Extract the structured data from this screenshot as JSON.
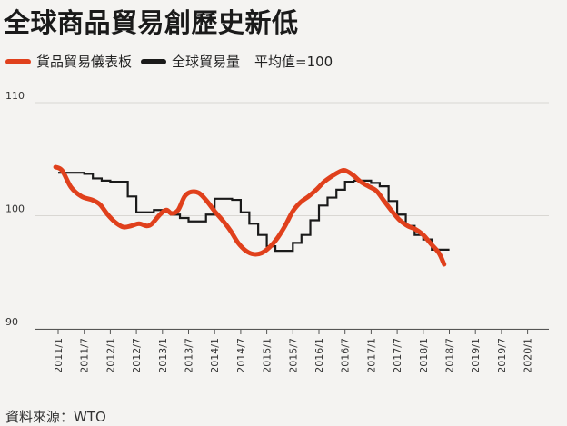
{
  "title": "全球商品貿易創歷史新低",
  "legend": {
    "items": [
      {
        "label": "貨品貿易儀表板",
        "color": "#e0401c"
      },
      {
        "label": "全球貿易量",
        "color": "#1a1a1a"
      }
    ],
    "note": "平均值=100"
  },
  "source": "資料來源：WTO",
  "colors": {
    "background": "#f4f3f1",
    "gridline": "#d9d7d3",
    "axis": "#555555",
    "barometer": "#e0401c",
    "volume": "#1a1a1a"
  },
  "chart_data": {
    "type": "line",
    "title": "全球商品貿易創歷史新低",
    "xlabel": "",
    "ylabel": "",
    "ylim": [
      90,
      110
    ],
    "yticks": [
      90,
      100,
      110
    ],
    "xticks": [
      "2011/1",
      "2011/7",
      "2012/1",
      "2012/7",
      "2013/1",
      "2013/7",
      "2014/1",
      "2014/7",
      "2015/1",
      "2015/7",
      "2016/1",
      "2016/7",
      "2017/1",
      "2017/7",
      "2018/1",
      "2018/7",
      "2019/1",
      "2019/7",
      "2020/1"
    ],
    "grid": true,
    "legend_position": "top-left",
    "series": [
      {
        "name": "貨品貿易儀表板",
        "style": "smooth",
        "points": [
          [
            -0.1,
            104.3
          ],
          [
            0.15,
            104.0
          ],
          [
            0.5,
            102.5
          ],
          [
            0.9,
            101.7
          ],
          [
            1.3,
            101.4
          ],
          [
            1.6,
            101.0
          ],
          [
            1.9,
            100.1
          ],
          [
            2.2,
            99.4
          ],
          [
            2.5,
            99.0
          ],
          [
            2.8,
            99.1
          ],
          [
            3.1,
            99.3
          ],
          [
            3.4,
            99.1
          ],
          [
            3.6,
            99.3
          ],
          [
            3.9,
            100.1
          ],
          [
            4.15,
            100.5
          ],
          [
            4.35,
            100.2
          ],
          [
            4.6,
            100.5
          ],
          [
            4.85,
            101.7
          ],
          [
            5.1,
            102.1
          ],
          [
            5.4,
            102.0
          ],
          [
            5.7,
            101.3
          ],
          [
            6.0,
            100.4
          ],
          [
            6.3,
            99.6
          ],
          [
            6.6,
            98.7
          ],
          [
            6.9,
            97.6
          ],
          [
            7.2,
            96.9
          ],
          [
            7.5,
            96.6
          ],
          [
            7.8,
            96.7
          ],
          [
            8.1,
            97.2
          ],
          [
            8.4,
            98.0
          ],
          [
            8.7,
            99.1
          ],
          [
            9.0,
            100.4
          ],
          [
            9.3,
            101.2
          ],
          [
            9.6,
            101.7
          ],
          [
            9.9,
            102.3
          ],
          [
            10.2,
            103.0
          ],
          [
            10.5,
            103.5
          ],
          [
            10.8,
            103.9
          ],
          [
            11.0,
            104.0
          ],
          [
            11.3,
            103.6
          ],
          [
            11.6,
            103.0
          ],
          [
            11.9,
            102.6
          ],
          [
            12.2,
            102.2
          ],
          [
            12.5,
            101.3
          ],
          [
            12.8,
            100.4
          ],
          [
            13.1,
            99.6
          ],
          [
            13.4,
            99.1
          ],
          [
            13.7,
            98.8
          ],
          [
            14.0,
            98.3
          ],
          [
            14.3,
            97.5
          ],
          [
            14.6,
            96.7
          ],
          [
            14.8,
            95.7
          ]
        ]
      },
      {
        "name": "全球貿易量",
        "style": "step",
        "points": [
          [
            0.0,
            103.8
          ],
          [
            0.33,
            103.8
          ],
          [
            0.67,
            103.8
          ],
          [
            1.0,
            103.7
          ],
          [
            1.33,
            103.3
          ],
          [
            1.67,
            103.1
          ],
          [
            2.0,
            103.0
          ],
          [
            2.33,
            103.0
          ],
          [
            2.67,
            101.7
          ],
          [
            3.0,
            100.3
          ],
          [
            3.33,
            100.3
          ],
          [
            3.67,
            100.5
          ],
          [
            4.0,
            100.3
          ],
          [
            4.33,
            100.1
          ],
          [
            4.67,
            99.8
          ],
          [
            5.0,
            99.5
          ],
          [
            5.33,
            99.5
          ],
          [
            5.67,
            100.1
          ],
          [
            6.0,
            101.5
          ],
          [
            6.33,
            101.5
          ],
          [
            6.67,
            101.4
          ],
          [
            7.0,
            100.3
          ],
          [
            7.33,
            99.3
          ],
          [
            7.67,
            98.3
          ],
          [
            8.0,
            97.3
          ],
          [
            8.33,
            96.9
          ],
          [
            8.67,
            96.9
          ],
          [
            9.0,
            97.6
          ],
          [
            9.33,
            98.3
          ],
          [
            9.67,
            99.6
          ],
          [
            10.0,
            100.9
          ],
          [
            10.33,
            101.6
          ],
          [
            10.67,
            102.3
          ],
          [
            11.0,
            103.0
          ],
          [
            11.33,
            103.1
          ],
          [
            11.67,
            103.1
          ],
          [
            12.0,
            102.9
          ],
          [
            12.33,
            102.6
          ],
          [
            12.67,
            101.3
          ],
          [
            13.0,
            100.1
          ],
          [
            13.33,
            99.1
          ],
          [
            13.67,
            98.3
          ],
          [
            14.0,
            97.9
          ],
          [
            14.33,
            97.0
          ],
          [
            14.67,
            97.0
          ]
        ]
      }
    ]
  }
}
